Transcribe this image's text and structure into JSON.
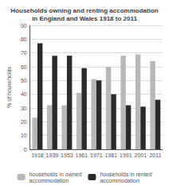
{
  "chart_data": {
    "type": "bar",
    "title": "Households owning and renting accommodation\nin England and Wales 1918 to 2011",
    "categories": [
      "1918",
      "1939",
      "1953",
      "1961",
      "1971",
      "1981",
      "1991",
      "2001",
      "2011"
    ],
    "series": [
      {
        "name": "households in owned\naccommodation",
        "color": "#b8b8b8",
        "values": [
          23,
          32,
          32,
          41,
          51,
          60,
          68,
          69,
          64
        ]
      },
      {
        "name": "households in rented\naccommodation",
        "color": "#2a2a2a",
        "values": [
          77,
          68,
          68,
          59,
          50,
          40,
          32,
          31,
          36
        ]
      }
    ],
    "ylabel": "% of households",
    "ylim": [
      0,
      90
    ],
    "yticks": [
      0,
      10,
      20,
      30,
      40,
      50,
      60,
      70,
      80,
      90
    ],
    "grid": true,
    "legend": "bottom"
  }
}
